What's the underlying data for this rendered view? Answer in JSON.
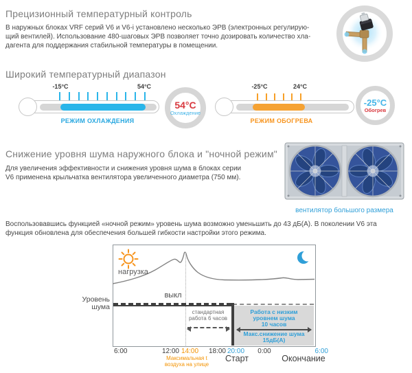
{
  "colors": {
    "accent_blue": "#2ab5e9",
    "accent_orange": "#f7941e",
    "accent_red": "#d8383e",
    "chart_blue_text": "#2f9fd8",
    "night_box_gray": "#d9d9d9",
    "noise_line_dark": "#3f3f3f",
    "title_gray": "#7d7d7d"
  },
  "sections": {
    "precision": {
      "title": "Прецизионный температурный контроль",
      "body": "В наружных блоках VRF серий V6 и V6-i установлено несколько ЭРВ (электронных регулирую-\nщий вентилей). Использование 480-шаговых ЭРВ позволяет точно дозировать количество хла-\nдагента для поддержания стабильной температуры в помещении."
    },
    "range": {
      "title": "Широкий температурный диапазон",
      "cooling": {
        "min": "-15°C",
        "max": "54°C",
        "mode": "РЕЖИМ ОХЛАЖДЕНИЯ",
        "badge_value": "54°C",
        "badge_caption": "Охлаждение"
      },
      "heating": {
        "min": "-25°C",
        "max": "24°C",
        "mode": "РЕЖИМ ОБОГРЕВА",
        "badge_value": "-25°C",
        "badge_caption": "Обогрев"
      }
    },
    "noise": {
      "title": "Снижение уровня шума наружного блока и \"ночной режим\"",
      "body": "Для увеличения эффективности и снижения уровня шума в блоках серии\nV6 применена крыльчатка вентилятора увеличенного диаметра (750 мм).",
      "photo_caption": "вентилятор большого размера"
    },
    "night": {
      "body": "Воспользовавшись функцией «ночной режим» уровень шума возможно уменьшить до 43 дБ(А). В поколении V6 эта\nфункция обновлена для обеспечения большей гибкости настройки этого режима."
    }
  },
  "chart": {
    "labels": {
      "load": "нагрузка",
      "off": "выкл",
      "noise_axis": "Уровень\nшума",
      "standard": "стандартная\nработа 6 часов",
      "low_noise_1": "Работа с низким",
      "low_noise_2": "уровнем шума",
      "low_noise_3": "10 часов",
      "max_reduction_1": "Макс.снижение шума",
      "max_reduction_2": "15дБ(А)",
      "max_temp": "Максимальная t\nвоздуха на улице",
      "start": "Старт",
      "end": "Окончание"
    },
    "x_labels": [
      "6:00",
      "12:00",
      "14:00",
      "18:00",
      "20:00",
      "0:00",
      "6:00"
    ]
  },
  "chart_data": {
    "type": "line",
    "title": "Ночной режим: суточная нагрузка и уровень шума",
    "x_ticks": [
      "6:00",
      "12:00",
      "14:00",
      "18:00",
      "20:00",
      "0:00",
      "6:00"
    ],
    "x_tick_colors": [
      "dark",
      "dark",
      "orange",
      "dark",
      "blue",
      "dark",
      "blue"
    ],
    "series": [
      {
        "name": "нагрузка",
        "x_hours": [
          6,
          8,
          10,
          12,
          12.8,
          13.3,
          13.7,
          14.1,
          14.4,
          15,
          16,
          17,
          18,
          20,
          22,
          24,
          25.5,
          26.5,
          30
        ],
        "y_relative": [
          0.61,
          0.67,
          0.74,
          0.84,
          0.86,
          0.82,
          0.84,
          0.93,
          0.88,
          0.77,
          0.7,
          0.66,
          0.65,
          0.65,
          0.65,
          0.65,
          0.67,
          0.65,
          0.66
        ]
      }
    ],
    "noise_level": {
      "label": "Уровень шума",
      "off_marker": "выкл",
      "standard_period": "стандартная работа 6 часов",
      "standard_span": [
        "14:00",
        "20:00"
      ],
      "low_noise_period": "Работа с низким уровнем шума 10 часов",
      "low_noise_span": [
        "20:00",
        "6:00"
      ],
      "max_reduction": "Макс.снижение шума 15дБ(А)"
    },
    "annotations": [
      "Максимальная t воздуха на улице",
      "Старт",
      "Окончание"
    ],
    "legend_icons": [
      "sun (день)",
      "moon (ночь)"
    ],
    "grid": false
  }
}
